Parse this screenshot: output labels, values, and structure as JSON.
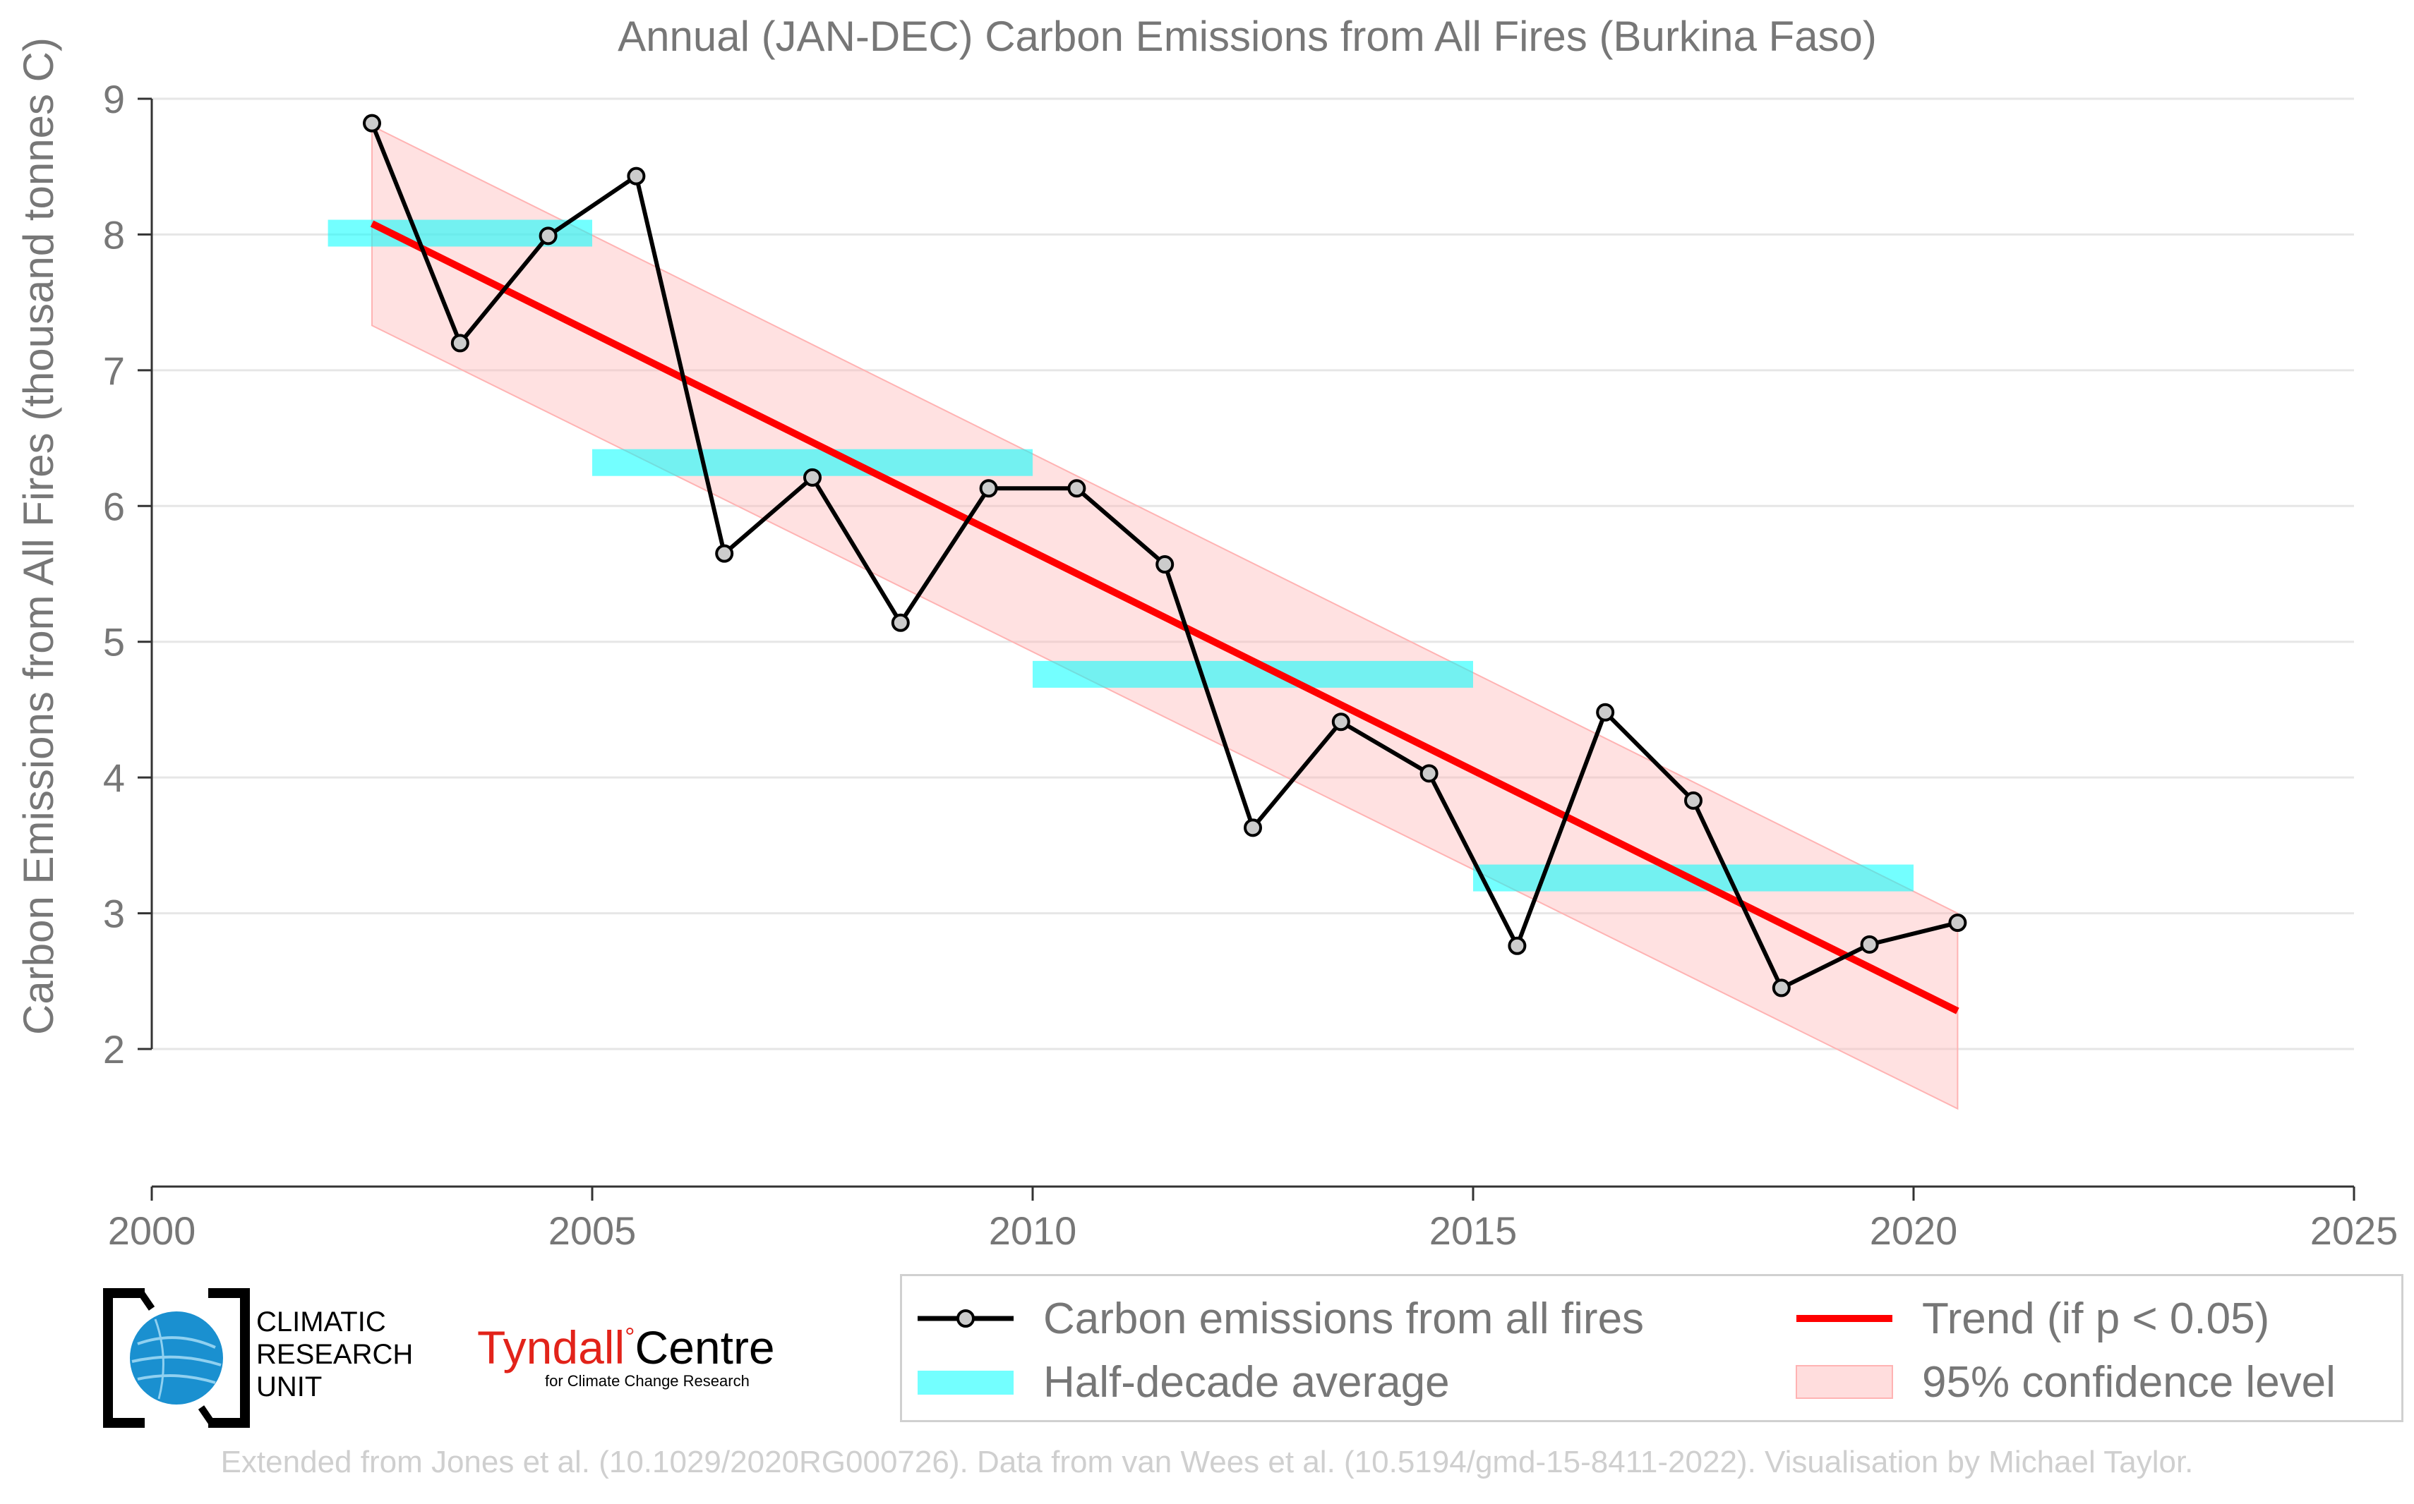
{
  "chart_data": {
    "type": "line",
    "title": "Annual (JAN-DEC) Carbon Emissions from All Fires (Burkina Faso)",
    "xlabel": "",
    "ylabel": "Carbon Emissions from All Fires (thousand tonnes C)",
    "xlim": [
      2000,
      2025
    ],
    "ylim": [
      1,
      9
    ],
    "x_ticks": [
      2000,
      2005,
      2010,
      2015,
      2020,
      2025
    ],
    "y_ticks": [
      2,
      3,
      4,
      5,
      6,
      7,
      8,
      9
    ],
    "grid": "horizontal",
    "series": [
      {
        "name": "Carbon emissions from all fires",
        "type": "line-markers",
        "color": "#000000",
        "marker_fill": "#cccccc",
        "x": [
          2002.5,
          2003.5,
          2004.5,
          2005.5,
          2006.5,
          2007.5,
          2008.5,
          2009.5,
          2010.5,
          2011.5,
          2012.5,
          2013.5,
          2014.5,
          2015.5,
          2016.5,
          2017.5,
          2018.5,
          2019.5,
          2020.5
        ],
        "y": [
          8.82,
          7.2,
          7.99,
          8.43,
          5.65,
          6.21,
          5.14,
          6.13,
          6.13,
          5.57,
          3.63,
          4.41,
          4.03,
          2.76,
          4.48,
          3.83,
          2.45,
          2.77,
          2.93
        ]
      },
      {
        "name": "Half-decade average",
        "type": "segments",
        "color": "#00ffff",
        "opacity": 0.55,
        "segments": [
          {
            "x0": 2002,
            "x1": 2005,
            "y": 8.01
          },
          {
            "x0": 2005,
            "x1": 2010,
            "y": 6.32
          },
          {
            "x0": 2010,
            "x1": 2015,
            "y": 4.76
          },
          {
            "x0": 2015,
            "x1": 2020,
            "y": 3.26
          }
        ]
      },
      {
        "name": "Trend (if p < 0.05)",
        "type": "line",
        "color": "#ff0000",
        "x": [
          2002.5,
          2020.5
        ],
        "y": [
          8.08,
          2.28
        ]
      },
      {
        "name": "95% confidence level",
        "type": "band",
        "color": "#ffb3b3",
        "opacity": 0.4,
        "x": [
          2002.5,
          2020.5
        ],
        "upper": [
          8.8,
          3.0
        ],
        "lower": [
          7.33,
          1.56
        ]
      }
    ],
    "legend_position": "bottom-right"
  },
  "legend": {
    "items": [
      {
        "label": "Carbon emissions from all fires"
      },
      {
        "label": "Trend (if p < 0.05)"
      },
      {
        "label": "Half-decade average"
      },
      {
        "label": "95% confidence level"
      }
    ]
  },
  "logos": {
    "cru_lines": [
      "CLIMATIC",
      "RESEARCH",
      "UNIT"
    ],
    "tyndall_name": "Tyndall",
    "tyndall_deg": "°",
    "tyndall_centre": "Centre",
    "tyndall_sub": "for Climate Change Research"
  },
  "credit": "Extended from Jones et al. (10.1029/2020RG000726). Data from van Wees et al. (10.5194/gmd-15-8411-2022). Visualisation by Michael Taylor.",
  "colors": {
    "axis_text": "#777777",
    "grid": "#e6e6e6"
  }
}
